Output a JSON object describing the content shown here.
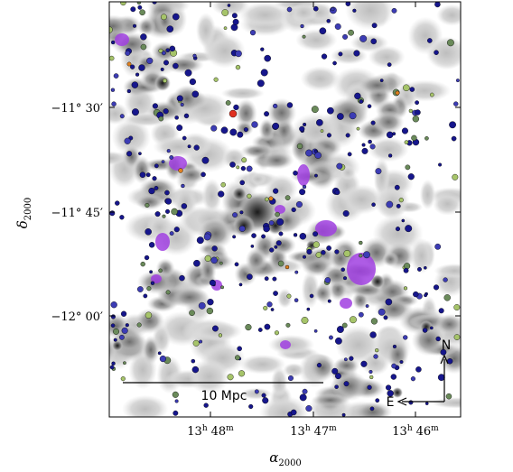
{
  "chart_data": {
    "type": "scatter",
    "title": "",
    "xlabel": "α",
    "xlabel_sub": "2000",
    "ylabel": "δ",
    "ylabel_sub": "2000",
    "xlim": [
      13.8167,
      13.7517
    ],
    "ylim": [
      -12.1667,
      -11.2167
    ],
    "x_ticks": [
      {
        "value": 13.8,
        "hours": "13",
        "hours_unit": "h",
        "minutes": "48",
        "minutes_unit": "m"
      },
      {
        "value": 13.7833,
        "hours": "13",
        "hours_unit": "h",
        "minutes": "47",
        "minutes_unit": "m"
      },
      {
        "value": 13.7667,
        "hours": "13",
        "hours_unit": "h",
        "minutes": "46",
        "minutes_unit": "m"
      }
    ],
    "y_ticks": [
      {
        "value": -11.5,
        "text": "−11° 30′"
      },
      {
        "value": -11.75,
        "text": "−11° 45′"
      },
      {
        "value": -12.0,
        "text": "−12° 00′"
      }
    ],
    "scale_bar_label": "10 Mpc",
    "compass": {
      "north": "N",
      "east": "E"
    },
    "grid": false,
    "legend": "none",
    "colors": {
      "galaxy_dark": "#16168c",
      "galaxy_mid": "#3c3cb4",
      "galaxy_green": "#6a8a5a",
      "galaxy_lightgreen": "#a6c46a",
      "galaxy_orange": "#e08020",
      "galaxy_red": "#e03020",
      "group_ellipse": "#a040e0",
      "contour_light": "#dcdcdc",
      "contour_mid": "#b8b8b8",
      "contour_dark": "#808080",
      "contour_core": "#333333"
    }
  }
}
